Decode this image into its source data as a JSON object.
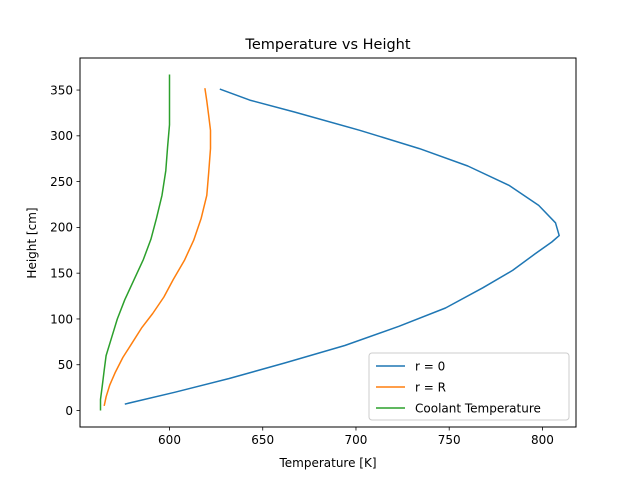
{
  "chart_data": {
    "type": "line",
    "title": "Temperature vs Height",
    "xlabel": "Temperature [K]",
    "ylabel": "Height [cm]",
    "xlim": [
      552,
      818
    ],
    "ylim": [
      -18,
      385
    ],
    "xticks": [
      600,
      650,
      700,
      750,
      800
    ],
    "yticks": [
      0,
      50,
      100,
      150,
      200,
      250,
      300,
      350
    ],
    "grid": false,
    "legend_position": "lower-right",
    "series": [
      {
        "name": "r = 0",
        "color": "#1f77b4",
        "points": [
          [
            576,
            7
          ],
          [
            603,
            20
          ],
          [
            632,
            35
          ],
          [
            662,
            52
          ],
          [
            694,
            71
          ],
          [
            723,
            92
          ],
          [
            748,
            112
          ],
          [
            768,
            134
          ],
          [
            784,
            153
          ],
          [
            796,
            171
          ],
          [
            805,
            184
          ],
          [
            809,
            191
          ],
          [
            807,
            205
          ],
          [
            798,
            224
          ],
          [
            782,
            246
          ],
          [
            760,
            267
          ],
          [
            734,
            286
          ],
          [
            702,
            306
          ],
          [
            667,
            326
          ],
          [
            643,
            339
          ],
          [
            627,
            351
          ]
        ]
      },
      {
        "name": "r = R",
        "color": "#ff7f0e",
        "points": [
          [
            565,
            5
          ],
          [
            566,
            15
          ],
          [
            568,
            28
          ],
          [
            571,
            42
          ],
          [
            575,
            58
          ],
          [
            580,
            74
          ],
          [
            585,
            90
          ],
          [
            591,
            106
          ],
          [
            597,
            124
          ],
          [
            602,
            143
          ],
          [
            608,
            164
          ],
          [
            613,
            186
          ],
          [
            617,
            210
          ],
          [
            620,
            235
          ],
          [
            621,
            260
          ],
          [
            622,
            286
          ],
          [
            622,
            306
          ],
          [
            621,
            322
          ],
          [
            620,
            338
          ],
          [
            619,
            352
          ]
        ]
      },
      {
        "name": "Coolant Temperature",
        "color": "#2ca02c",
        "points": [
          [
            563,
            0
          ],
          [
            563,
            12
          ],
          [
            564,
            28
          ],
          [
            565,
            44
          ],
          [
            566,
            60
          ],
          [
            569,
            80
          ],
          [
            572,
            100
          ],
          [
            576,
            121
          ],
          [
            581,
            143
          ],
          [
            586,
            165
          ],
          [
            590,
            187
          ],
          [
            593,
            210
          ],
          [
            596,
            235
          ],
          [
            598,
            262
          ],
          [
            599,
            288
          ],
          [
            600,
            312
          ],
          [
            600,
            335
          ],
          [
            600,
            352
          ],
          [
            600,
            367
          ]
        ]
      }
    ]
  }
}
